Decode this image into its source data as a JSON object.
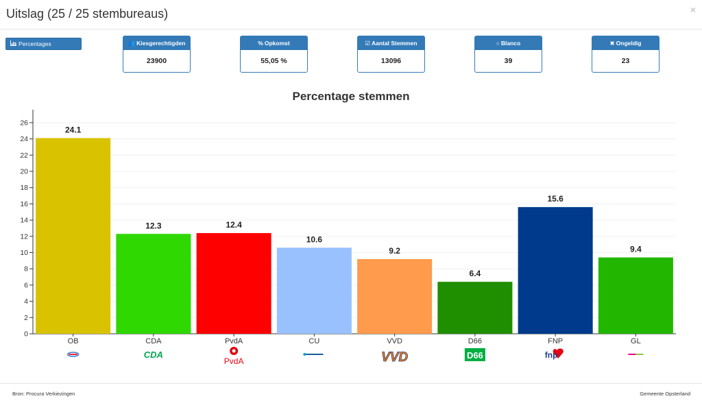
{
  "header": {
    "title": "Uitslag (25 / 25 stembureaus)",
    "close_glyph": "×"
  },
  "toolbar": {
    "percentages_label": "Percentages",
    "percentages_icon": "bar-chart-icon"
  },
  "stats": [
    {
      "label": "Kiesgerechtigden",
      "value": "23900",
      "icon": "users-icon",
      "glyph": "👥"
    },
    {
      "label": "Opkomst",
      "value": "55,05 %",
      "icon": "percent-icon",
      "glyph": "%"
    },
    {
      "label": "Aantal Stemmen",
      "value": "13096",
      "icon": "check-square-icon",
      "glyph": "☑"
    },
    {
      "label": "Blanco",
      "value": "39",
      "icon": "circle-icon",
      "glyph": "○"
    },
    {
      "label": "Ongeldig",
      "value": "23",
      "icon": "times-icon",
      "glyph": "✖"
    }
  ],
  "chart_data": {
    "type": "bar",
    "title": "Percentage stemmen",
    "categories": [
      "OB",
      "CDA",
      "PvdA",
      "CU",
      "VVD",
      "D66",
      "FNP",
      "GL"
    ],
    "values": [
      24.1,
      12.3,
      12.4,
      10.6,
      9.2,
      6.4,
      15.6,
      9.4
    ],
    "colors": [
      "#d9c300",
      "#2ed800",
      "#ff0000",
      "#99c1fe",
      "#ff9b4d",
      "#1f8f00",
      "#003a8c",
      "#22b600"
    ],
    "ylim": [
      0,
      27.6
    ],
    "yticks": [
      0,
      2,
      4,
      6,
      8,
      10,
      12,
      14,
      16,
      18,
      20,
      22,
      24,
      26
    ],
    "grid": true,
    "legend": "none",
    "xlabel": "",
    "ylabel": "",
    "logos": [
      {
        "name": "ob-logo",
        "text": ""
      },
      {
        "name": "cda-logo",
        "text": "CDA"
      },
      {
        "name": "pvda-logo",
        "text": "PvdA"
      },
      {
        "name": "cu-logo",
        "text": ""
      },
      {
        "name": "vvd-logo",
        "text": "VVD"
      },
      {
        "name": "d66-logo",
        "text": "D66"
      },
      {
        "name": "fnp-logo",
        "text": "fnp"
      },
      {
        "name": "gl-logo",
        "text": ""
      }
    ]
  },
  "footer": {
    "source": "Bron: Procura Verkiezingen",
    "organisation": "Gemeente Opsterland"
  }
}
